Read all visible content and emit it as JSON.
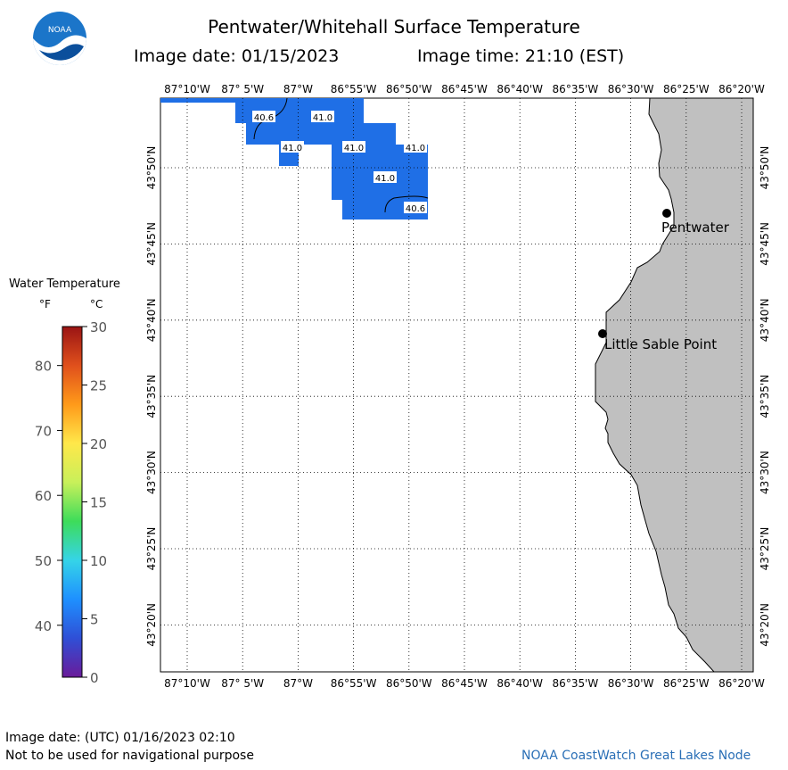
{
  "header": {
    "title": "Pentwater/Whitehall Surface Temperature",
    "image_date": "Image date: 01/15/2023",
    "image_time": "Image time: 21:10 (EST)"
  },
  "logo": {
    "text": "NOAA"
  },
  "legend": {
    "title": "Water Temperature",
    "unit_f": "°F",
    "unit_c": "°C",
    "f_ticks": [
      "80",
      "70",
      "60",
      "50",
      "40"
    ],
    "c_ticks": [
      "30",
      "25",
      "20",
      "15",
      "10",
      "5",
      "0"
    ],
    "colors": [
      "#6a1b9a",
      "#2f4fd6",
      "#1e90ff",
      "#35d4e8",
      "#3ddc5a",
      "#c8f05a",
      "#ffe84a",
      "#ff9a1a",
      "#e0501c",
      "#9a1414"
    ]
  },
  "map": {
    "lon_labels": [
      "87°10'W",
      "87° 5'W",
      "87°W",
      "86°55'W",
      "86°50'W",
      "86°45'W",
      "86°40'W",
      "86°35'W",
      "86°30'W",
      "86°25'W",
      "86°20'W"
    ],
    "lat_labels": [
      "43°50'N",
      "43°45'N",
      "43°40'N",
      "43°35'N",
      "43°30'N",
      "43°25'N",
      "43°20'N"
    ],
    "water_color": "#1f6fe6",
    "land_color": "#c0c0c0",
    "contour_labels": [
      "40.6",
      "41.0",
      "41.0",
      "41.0",
      "41.0",
      "41.0",
      "40.6"
    ],
    "places": [
      "Pentwater",
      "Little Sable Point"
    ]
  },
  "footer": {
    "utc_date": "Image date: (UTC) 01/16/2023  02:10",
    "disclaimer": "Not to be used for navigational purpose",
    "credit": "NOAA CoastWatch Great Lakes Node"
  }
}
